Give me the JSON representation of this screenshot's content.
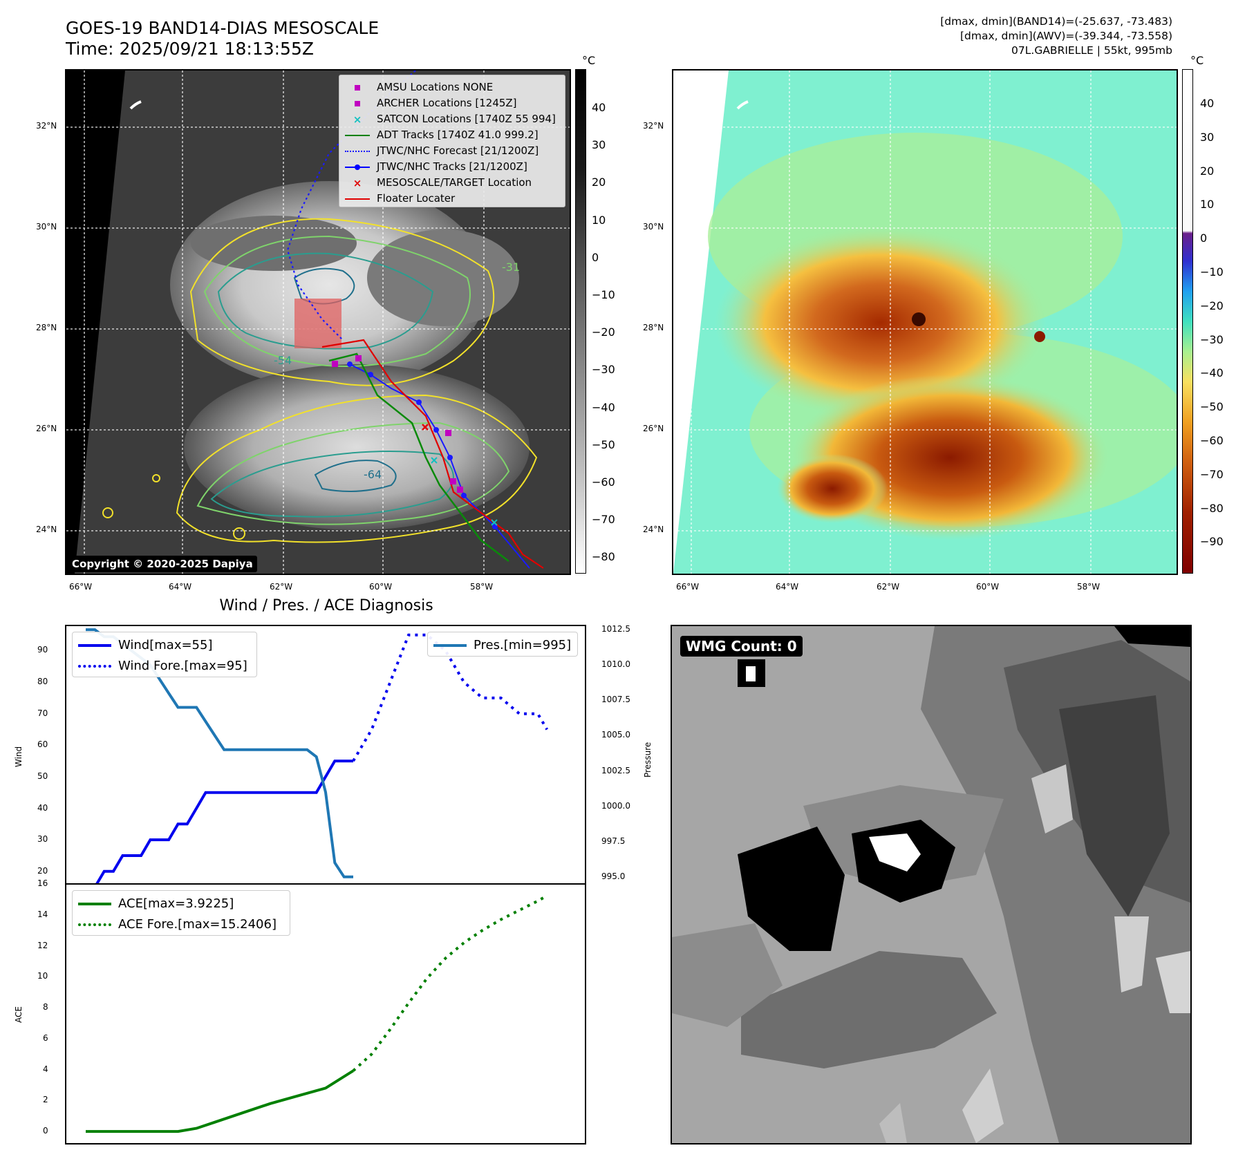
{
  "header": {
    "title_line1": "GOES-19 BAND14-DIAS MESOSCALE",
    "title_line2": "Time: 2025/09/21 18:13:55Z",
    "right_line1": "[dmax, dmin](BAND14)=(-25.637, -73.483)",
    "right_line2": "[dmax, dmin](AWV)=(-39.344, -73.558)",
    "right_line3": "07L.GABRIELLE | 55kt, 995mb"
  },
  "map_left": {
    "lat_labels": [
      "32°N",
      "30°N",
      "28°N",
      "26°N",
      "24°N"
    ],
    "lon_labels": [
      "66°W",
      "64°W",
      "62°W",
      "60°W",
      "58°W"
    ],
    "copyright": "Copyright © 2020-2025 Dapiya",
    "contour_labels": [
      "-31",
      "-54",
      "-64"
    ],
    "legend": [
      {
        "label": "AMSU Locations NONE",
        "marker": "square",
        "color": "#c000c0"
      },
      {
        "label": "ARCHER Locations [1245Z]",
        "marker": "square",
        "color": "#c000c0"
      },
      {
        "label": "SATCON Locations [1740Z 55 994]",
        "marker": "x",
        "color": "#10c0c0"
      },
      {
        "label": "ADT Tracks [1740Z 41.0 999.2]",
        "marker": "line",
        "color": "#008000"
      },
      {
        "label": "JTWC/NHC Forecast [21/1200Z]",
        "marker": "dotted",
        "color": "#0000ff"
      },
      {
        "label": "JTWC/NHC Tracks [21/1200Z]",
        "marker": "line-dot",
        "color": "#0000ff"
      },
      {
        "label": "MESOSCALE/TARGET Location",
        "marker": "x",
        "color": "#e00000"
      },
      {
        "label": "Floater Locater",
        "marker": "line",
        "color": "#e00000"
      }
    ]
  },
  "colorbar_left": {
    "unit": "°C",
    "ticks": [
      "40",
      "30",
      "20",
      "10",
      "0",
      "−10",
      "−20",
      "−30",
      "−40",
      "−50",
      "−60",
      "−70",
      "−80"
    ]
  },
  "map_right": {
    "lat_labels": [
      "32°N",
      "30°N",
      "28°N",
      "26°N",
      "24°N"
    ],
    "lon_labels": [
      "66°W",
      "64°W",
      "62°W",
      "60°W",
      "58°W"
    ]
  },
  "colorbar_right": {
    "unit": "°C",
    "ticks": [
      "40",
      "30",
      "20",
      "10",
      "0",
      "−10",
      "−20",
      "−30",
      "−40",
      "−50",
      "−60",
      "−70",
      "−80",
      "−90"
    ]
  },
  "wmg_panel": {
    "badge": "WMG Count: 0"
  },
  "chart_data": [
    {
      "type": "line",
      "title": "Wind / Pres. / ACE Diagnosis",
      "ylabel": "Wind",
      "ylabel_right": "Pressure",
      "ylim": [
        16,
        98
      ],
      "ylim_right": [
        994.5,
        1012.8
      ],
      "yticks": [
        "90",
        "80",
        "70",
        "60",
        "50",
        "40",
        "30",
        "20"
      ],
      "yticks_right": [
        "1012.5",
        "1010.0",
        "1007.5",
        "1005.0",
        "1002.5",
        "1000.0",
        "997.5",
        "995.0"
      ],
      "x_index_range": [
        0,
        52
      ],
      "series": [
        {
          "name": "Wind[max=55]",
          "axis": "left",
          "style": "solid",
          "color": "#0000ee",
          "x": [
            0,
            1,
            2,
            3,
            4,
            5,
            6,
            7,
            8,
            9,
            10,
            11,
            12,
            13,
            14,
            15,
            16,
            17,
            18,
            19,
            20,
            21,
            22,
            23,
            24,
            25,
            26,
            27,
            28,
            29
          ],
          "y": [
            15,
            15,
            20,
            20,
            25,
            25,
            25,
            30,
            30,
            30,
            35,
            35,
            40,
            45,
            45,
            45,
            45,
            45,
            45,
            45,
            45,
            45,
            45,
            45,
            45,
            45,
            50,
            55,
            55,
            55
          ]
        },
        {
          "name": "Wind Fore.[max=95]",
          "axis": "left",
          "style": "dotted",
          "color": "#0000ee",
          "x": [
            29,
            31,
            33,
            35,
            37,
            39,
            41,
            43,
            45,
            47,
            49,
            50
          ],
          "y": [
            55,
            65,
            80,
            95,
            95,
            90,
            80,
            75,
            75,
            70,
            70,
            65
          ]
        },
        {
          "name": "Pres.[min=995]",
          "axis": "right",
          "style": "solid",
          "color": "#1f77b4",
          "x": [
            0,
            1,
            2,
            3,
            4,
            5,
            6,
            7,
            8,
            9,
            10,
            11,
            12,
            13,
            14,
            15,
            16,
            17,
            18,
            19,
            20,
            21,
            22,
            23,
            24,
            25,
            26,
            27,
            28,
            29
          ],
          "y": [
            1012.5,
            1012.5,
            1012.0,
            1012.0,
            1011.5,
            1011.0,
            1010.5,
            1010.0,
            1009.0,
            1008.0,
            1007.0,
            1007.0,
            1007.0,
            1006.0,
            1005.0,
            1004.0,
            1004.0,
            1004.0,
            1004.0,
            1004.0,
            1004.0,
            1004.0,
            1004.0,
            1004.0,
            1004.0,
            1003.5,
            1001.0,
            996.0,
            995.0,
            995.0
          ]
        }
      ]
    },
    {
      "type": "line",
      "ylabel": "ACE",
      "ylim": [
        -0.8,
        16
      ],
      "yticks": [
        "16",
        "14",
        "12",
        "10",
        "8",
        "6",
        "4",
        "2",
        "0"
      ],
      "x_index_range": [
        0,
        52
      ],
      "series": [
        {
          "name": "ACE[max=3.9225]",
          "style": "solid",
          "color": "#008000",
          "x": [
            0,
            5,
            10,
            12,
            14,
            17,
            20,
            23,
            26,
            29
          ],
          "y": [
            0,
            0,
            0,
            0.2,
            0.6,
            1.2,
            1.8,
            2.3,
            2.8,
            3.9225
          ]
        },
        {
          "name": "ACE Fore.[max=15.2406]",
          "style": "dotted",
          "color": "#008000",
          "x": [
            29,
            31,
            33,
            35,
            37,
            39,
            41,
            43,
            45,
            47,
            49,
            50
          ],
          "y": [
            3.9225,
            5.0,
            6.6,
            8.3,
            9.9,
            11.2,
            12.2,
            13.0,
            13.7,
            14.3,
            14.9,
            15.2406
          ]
        }
      ]
    }
  ]
}
